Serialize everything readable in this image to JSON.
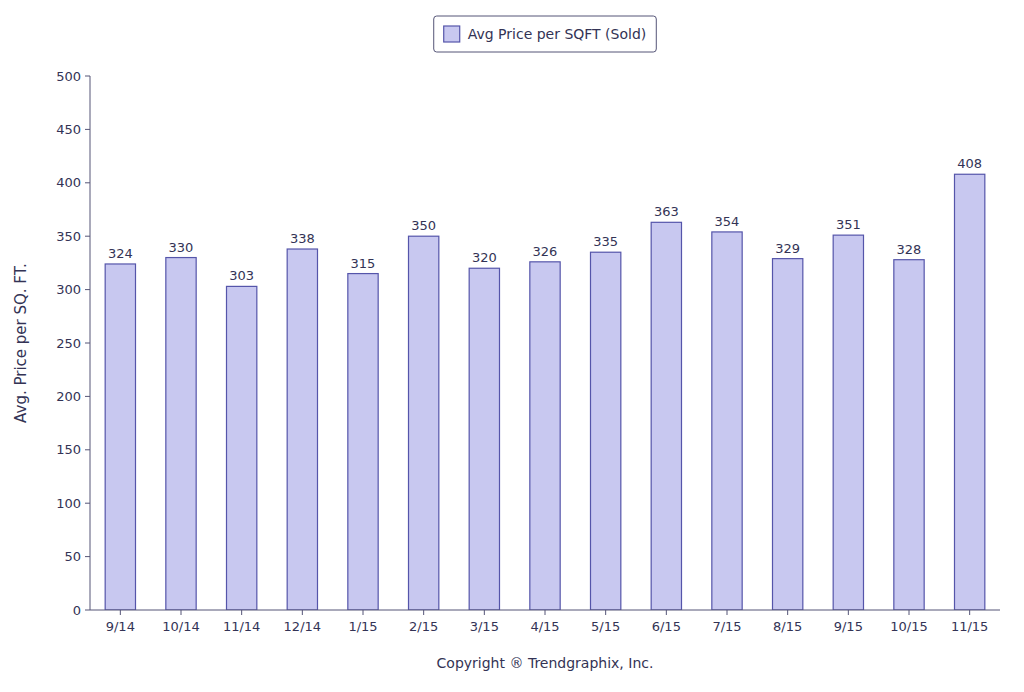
{
  "chart_data": {
    "type": "bar",
    "categories": [
      "9/14",
      "10/14",
      "11/14",
      "12/14",
      "1/15",
      "2/15",
      "3/15",
      "4/15",
      "5/15",
      "6/15",
      "7/15",
      "8/15",
      "9/15",
      "10/15",
      "11/15"
    ],
    "series": [
      {
        "name": "Avg Price per SQFT (Sold)",
        "color": "#c8c8f0",
        "values": [
          324,
          330,
          303,
          338,
          315,
          350,
          320,
          326,
          335,
          363,
          354,
          329,
          351,
          328,
          408
        ]
      }
    ],
    "xlabel": "Copyright ® Trendgraphix, Inc.",
    "ylabel": "Avg. Price per SQ. FT.",
    "ylim": [
      0,
      500
    ],
    "yticks": [
      0,
      50,
      100,
      150,
      200,
      250,
      300,
      350,
      400,
      450,
      500
    ],
    "grid": false,
    "legend": "top",
    "data_labels": true
  }
}
